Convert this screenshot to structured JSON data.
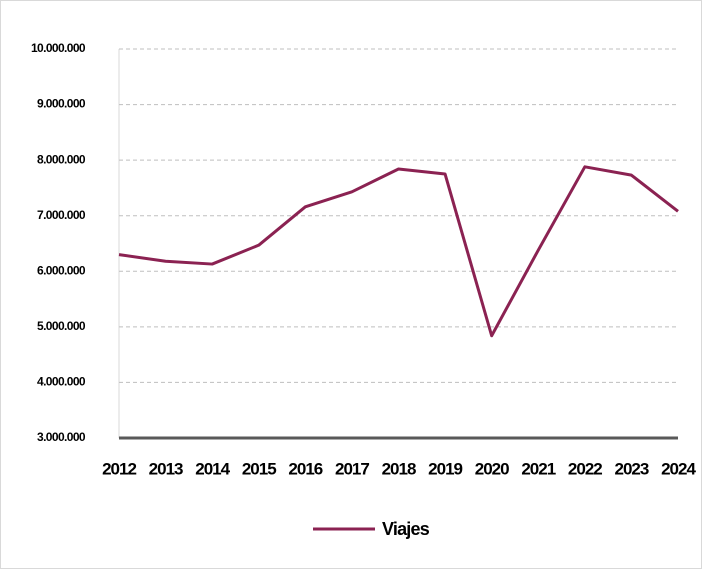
{
  "chart_data": {
    "type": "line",
    "categories": [
      "2012",
      "2013",
      "2014",
      "2015",
      "2016",
      "2017",
      "2018",
      "2019",
      "2020",
      "2021",
      "2022",
      "2023",
      "2024"
    ],
    "series": [
      {
        "name": "Viajes",
        "color": "#8b2252",
        "values": [
          6300000,
          6180000,
          6130000,
          6470000,
          7160000,
          7430000,
          7840000,
          7750000,
          4840000,
          6380000,
          7880000,
          7730000,
          7080000
        ]
      }
    ],
    "ylim": [
      3000000,
      10000000
    ],
    "yticks": [
      {
        "value": 3000000,
        "label": "3.000.000"
      },
      {
        "value": 4000000,
        "label": "4.000.000"
      },
      {
        "value": 5000000,
        "label": "5.000.000"
      },
      {
        "value": 6000000,
        "label": "6.000.000"
      },
      {
        "value": 7000000,
        "label": "7.000.000"
      },
      {
        "value": 8000000,
        "label": "8.000.000"
      },
      {
        "value": 9000000,
        "label": "9.000.000"
      },
      {
        "value": 10000000,
        "label": "10.000.000"
      }
    ],
    "grid": true,
    "legend": "bottom"
  }
}
